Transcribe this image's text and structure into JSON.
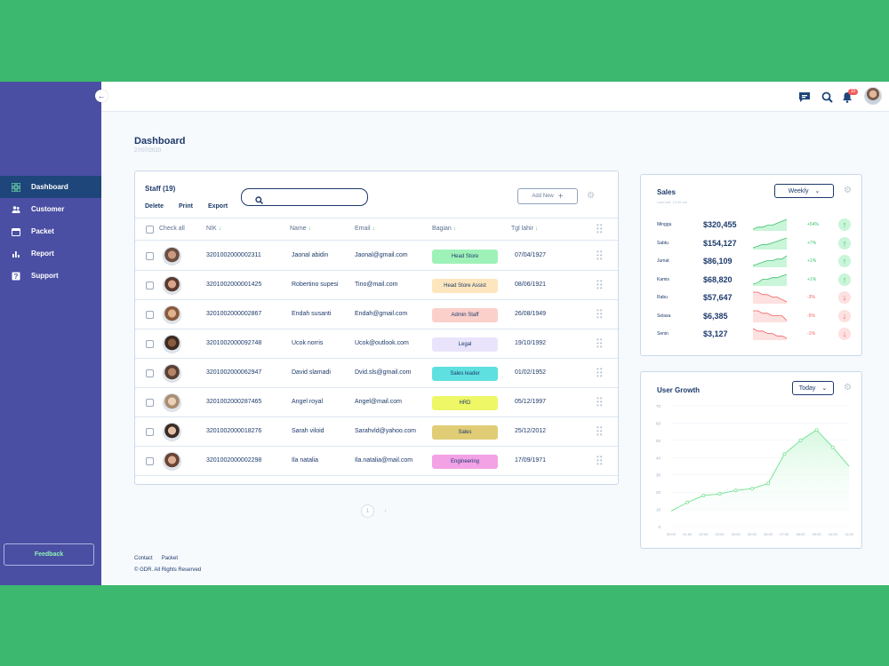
{
  "sidebar": {
    "items": [
      {
        "label": "Dashboard",
        "icon": "dashboard-icon",
        "active": true
      },
      {
        "label": "Customer",
        "icon": "users-icon",
        "active": false
      },
      {
        "label": "Packet",
        "icon": "calendar-icon",
        "active": false
      },
      {
        "label": "Report",
        "icon": "bar-chart-icon",
        "active": false
      },
      {
        "label": "Support",
        "icon": "help-icon",
        "active": false
      }
    ],
    "feedback_label": "Feedback"
  },
  "topbar": {
    "notification_count": "10"
  },
  "page": {
    "title": "Dashboard",
    "date": "27/07/2020"
  },
  "staff": {
    "title": "Staff (19)",
    "actions": [
      "Delete",
      "Print",
      "Export"
    ],
    "search_placeholder": "",
    "add_new_label": "Add New",
    "columns": {
      "check_all": "Check all",
      "nik": "NIK",
      "name": "Name",
      "email": "Email",
      "bagian": "Bagian",
      "tgl_lahir": "Tgl lahir"
    },
    "rows": [
      {
        "nik": "3201002000002311",
        "name": "Jaonal abidin",
        "email": "Jaonal@gmail.com",
        "bagian": "Head Store",
        "tag_color": "#9ef2b8",
        "tgl_lahir": "07/04/1927",
        "avatar_skin": "#c99a7f",
        "avatar_bg": "#6b4f41"
      },
      {
        "nik": "3201002000001425",
        "name": "Robertino supesi",
        "email": "Tino@mail.com",
        "bagian": "Head Store Assist",
        "tag_color": "#fde6bd",
        "tgl_lahir": "08/06/1921",
        "avatar_skin": "#d8a48a",
        "avatar_bg": "#5b3a2e"
      },
      {
        "nik": "3201002000002867",
        "name": "Endah susanti",
        "email": "Endah@gmail.com",
        "bagian": "Admin Staff",
        "tag_color": "#fbd0cb",
        "tgl_lahir": "26/08/1949",
        "avatar_skin": "#e0b28e",
        "avatar_bg": "#8a5a3c"
      },
      {
        "nik": "3201002000092748",
        "name": "Ucok norris",
        "email": "Ucok@outlook.com",
        "bagian": "Legal",
        "tag_color": "#e9e4fb",
        "tgl_lahir": "19/10/1992",
        "avatar_skin": "#8a5a3f",
        "avatar_bg": "#3d2a22"
      },
      {
        "nik": "3201002000062947",
        "name": "David slamadi",
        "email": "Dvid.sls@gmail.com",
        "bagian": "Sales leader",
        "tag_color": "#5ee0e0",
        "tgl_lahir": "01/02/1952",
        "avatar_skin": "#b58467",
        "avatar_bg": "#5a4034"
      },
      {
        "nik": "3201002000287465",
        "name": "Angel royal",
        "email": "Angel@mail.com",
        "bagian": "HRD",
        "tag_color": "#eef766",
        "tgl_lahir": "05/12/1997",
        "avatar_skin": "#ead0b8",
        "avatar_bg": "#a98d6f"
      },
      {
        "nik": "3201002000018276",
        "name": "Sarah viloid",
        "email": "Sarahvld@yahoo.com",
        "bagian": "Sales",
        "tag_color": "#e0cd76",
        "tgl_lahir": "25/12/2012",
        "avatar_skin": "#e2bea6",
        "avatar_bg": "#3a2b25"
      },
      {
        "nik": "3201002000002298",
        "name": "Ila natalia",
        "email": "Ila.natalia@mail.com",
        "bagian": "Engineering",
        "tag_color": "#f3a2e6",
        "tgl_lahir": "17/09/1971",
        "avatar_skin": "#dcae93",
        "avatar_bg": "#6a4434"
      }
    ],
    "pagination": {
      "current": "1",
      "next": "›"
    }
  },
  "sales": {
    "title": "Sales",
    "subtitle": "Last edit, 12:49 am",
    "period": "Weekly",
    "rows": [
      {
        "day": "Minggu",
        "amount": "$320,455",
        "pct": "+54%",
        "direction": "up",
        "trend": [
          4,
          5,
          5,
          6,
          6,
          7,
          8,
          9
        ]
      },
      {
        "day": "Sabtu",
        "amount": "$154,127",
        "pct": "+7%",
        "direction": "up",
        "trend": [
          3,
          4,
          5,
          5,
          6,
          7,
          8,
          9
        ]
      },
      {
        "day": "Jumat",
        "amount": "$86,109",
        "pct": "+1%",
        "direction": "up",
        "trend": [
          3,
          4,
          5,
          6,
          6,
          7,
          7,
          9
        ]
      },
      {
        "day": "Kamis",
        "amount": "$68,820",
        "pct": "+1%",
        "direction": "up",
        "trend": [
          3,
          4,
          6,
          6,
          7,
          7,
          8,
          9
        ]
      },
      {
        "day": "Rabu",
        "amount": "$57,647",
        "pct": "-3%",
        "direction": "down",
        "trend": [
          8,
          8,
          7,
          7,
          6,
          6,
          5,
          4
        ]
      },
      {
        "day": "Selasa",
        "amount": "$6,385",
        "pct": "-5%",
        "direction": "down",
        "trend": [
          8,
          8,
          7,
          7,
          6,
          6,
          6,
          4
        ]
      },
      {
        "day": "Senin",
        "amount": "$3,127",
        "pct": "-1%",
        "direction": "down",
        "trend": [
          8,
          7,
          7,
          6,
          6,
          5,
          5,
          4
        ]
      }
    ],
    "colors": {
      "up": "#3cbf6c",
      "down": "#f06262",
      "up_fill": "#c9f5d8",
      "down_fill": "#fde0e0"
    }
  },
  "chart_data": {
    "type": "area",
    "title": "User Growth",
    "period": "Today",
    "x": [
      "00:00",
      "01:00",
      "02:00",
      "03:00",
      "04:00",
      "05:00",
      "06:00",
      "07:00",
      "08:00",
      "09:00",
      "10:00",
      "11:00"
    ],
    "series": [
      {
        "values": [
          9,
          14,
          18,
          19,
          21,
          22,
          25,
          42,
          50,
          56,
          46,
          35
        ]
      }
    ],
    "y_ticks": [
      "0",
      "10",
      "20",
      "30",
      "40",
      "50",
      "60",
      "70"
    ],
    "ylim": [
      0,
      70
    ],
    "grid": true,
    "colors": {
      "line": "#7de39b",
      "fill": "#d6f8e0"
    }
  },
  "footer": {
    "links": [
      "Contact",
      "Packet"
    ],
    "copyright": "© GDR. All Rights Reserved"
  }
}
